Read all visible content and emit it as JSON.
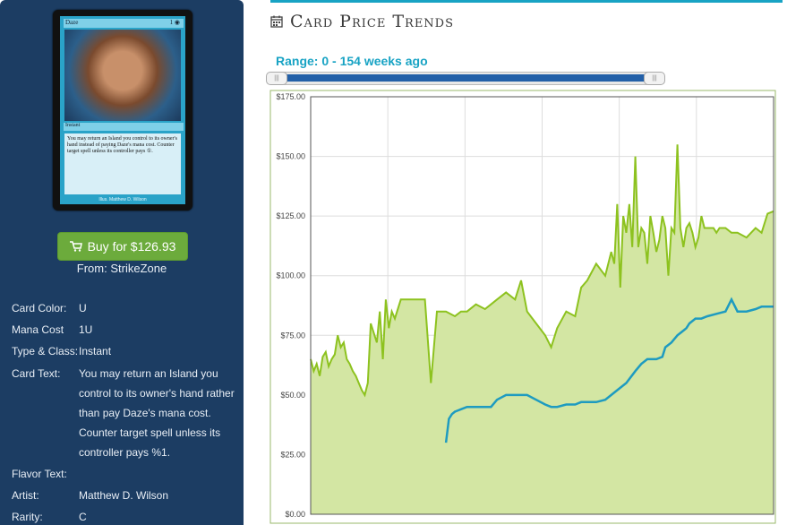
{
  "card": {
    "name": "Daze",
    "mana_symbol": "1 ◉",
    "type_line": "Instant",
    "rules_text": "You may return an Island you control to its owner's hand instead of paying Daze's mana cost. Counter target spell unless its controller pays ①.",
    "artist_line": "Illus. Matthew D. Wilson"
  },
  "buy": {
    "label": "Buy for $126.93",
    "from": "From: StrikeZone"
  },
  "details": [
    {
      "key": "Card Color:",
      "value": "U"
    },
    {
      "key": "Mana Cost",
      "value": "1U"
    },
    {
      "key": "Type & Class:",
      "value": "Instant"
    },
    {
      "key": "Card Text:",
      "value": "You may return an Island you control to its owner's hand rather than pay Daze's mana cost. Counter target spell unless its controller pays %1."
    },
    {
      "key": "Flavor Text:",
      "value": ""
    },
    {
      "key": "Artist:",
      "value": "Matthew D. Wilson"
    },
    {
      "key": "Rarity:",
      "value": "C"
    }
  ],
  "section_title": "Card Price Trends",
  "range_label": "Range: 0 - 154 weeks ago",
  "icons": {
    "calendar": "calendar-icon",
    "cart": "cart-icon"
  },
  "colors": {
    "accent": "#18a3c4",
    "green_line": "#8dc21f",
    "green_fill": "#d3e6a3",
    "blue_line": "#1e9bc0",
    "buy_button": "#6cab3c",
    "panel": "#1c3d63"
  },
  "chart_data": {
    "type": "line",
    "title": "",
    "xlabel": "",
    "ylabel": "",
    "ylim": [
      0,
      175
    ],
    "y_ticks": [
      "$0.00",
      "$25.00",
      "$50.00",
      "$75.00",
      "$100.00",
      "$125.00",
      "$150.00",
      "$175.00"
    ],
    "x_range": [
      0,
      154
    ],
    "grid": true,
    "series": [
      {
        "style": "area",
        "x": [
          0,
          1,
          2,
          3,
          4,
          5,
          6,
          7,
          8,
          9,
          10,
          11,
          12,
          13,
          14,
          15,
          16,
          17,
          18,
          19,
          20,
          22,
          23,
          24,
          25,
          26,
          27,
          28,
          30,
          32,
          35,
          38,
          40,
          42,
          45,
          48,
          50,
          52,
          55,
          58,
          60,
          62,
          65,
          68,
          70,
          72,
          75,
          78,
          80,
          82,
          85,
          88,
          90,
          92,
          95,
          98,
          100,
          101,
          102,
          103,
          104,
          105,
          106,
          107,
          108,
          109,
          110,
          111,
          112,
          113,
          114,
          115,
          116,
          117,
          118,
          119,
          120,
          121,
          122,
          123,
          124,
          125,
          126,
          127,
          128,
          129,
          130,
          131,
          132,
          133,
          134,
          135,
          136,
          138,
          140,
          142,
          145,
          148,
          150,
          152,
          154
        ],
        "values": [
          65,
          60,
          63,
          58,
          66,
          68,
          62,
          65,
          67,
          75,
          70,
          72,
          65,
          63,
          60,
          58,
          55,
          52,
          50,
          55,
          80,
          72,
          85,
          65,
          90,
          78,
          85,
          82,
          90,
          90,
          90,
          90,
          55,
          85,
          85,
          83,
          85,
          85,
          88,
          86,
          88,
          90,
          93,
          90,
          98,
          85,
          80,
          75,
          70,
          78,
          85,
          83,
          95,
          98,
          105,
          100,
          110,
          105,
          130,
          95,
          125,
          118,
          130,
          112,
          150,
          112,
          120,
          118,
          105,
          125,
          118,
          110,
          115,
          125,
          120,
          100,
          120,
          118,
          155,
          120,
          112,
          120,
          122,
          118,
          112,
          116,
          125,
          120,
          120,
          120,
          120,
          118,
          120,
          120,
          118,
          118,
          116,
          120,
          118,
          126,
          127
        ]
      },
      {
        "style": "line",
        "x": [
          45,
          46,
          47,
          48,
          50,
          52,
          55,
          58,
          60,
          62,
          65,
          68,
          70,
          72,
          75,
          78,
          80,
          82,
          85,
          88,
          90,
          92,
          95,
          98,
          100,
          102,
          105,
          108,
          110,
          112,
          115,
          117,
          118,
          120,
          122,
          124,
          125,
          126,
          128,
          130,
          132,
          135,
          138,
          140,
          142,
          145,
          148,
          150,
          152,
          154
        ],
        "values": [
          30,
          40,
          42,
          43,
          44,
          45,
          45,
          45,
          45,
          48,
          50,
          50,
          50,
          50,
          48,
          46,
          45,
          45,
          46,
          46,
          47,
          47,
          47,
          48,
          50,
          52,
          55,
          60,
          63,
          65,
          65,
          66,
          70,
          72,
          75,
          77,
          78,
          80,
          82,
          82,
          83,
          84,
          85,
          90,
          85,
          85,
          86,
          87,
          87,
          87
        ]
      }
    ]
  }
}
